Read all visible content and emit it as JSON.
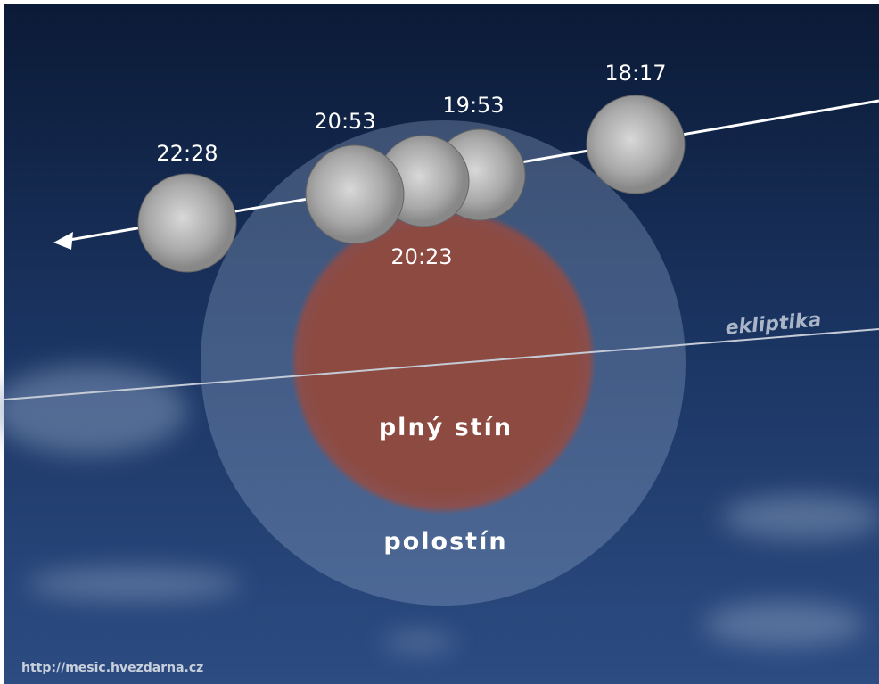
{
  "moons": [
    {
      "time": "22:28"
    },
    {
      "time": "20:53"
    },
    {
      "time": "20:23"
    },
    {
      "time": "19:53"
    },
    {
      "time": "18:17"
    }
  ],
  "ecliptic_label": "ekliptika",
  "umbra_label": "plný stín",
  "penumbra_label": "polostín",
  "source_url": "http://mesic.hvezdarna.cz"
}
